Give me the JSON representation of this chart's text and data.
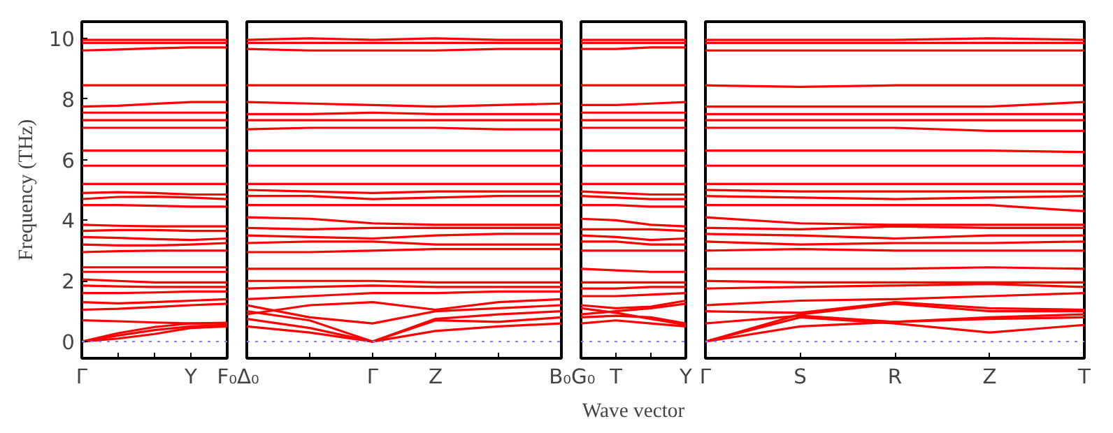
{
  "chart_data": [
    {
      "type": "line",
      "ylabel": "Frequency (THz)",
      "ylim": [
        -0.55,
        10.55
      ],
      "yticks": [
        0,
        2,
        4,
        6,
        8,
        10
      ],
      "categories": [
        "Γ",
        null,
        null,
        "Y",
        "F₀"
      ],
      "grid": false,
      "line_style": "solid",
      "ref_lines": [
        {
          "axis": "y",
          "value": 0,
          "color": "#8080ff",
          "line_style": "dotted"
        }
      ],
      "series": [
        {
          "color": "#ff0000",
          "values": [
            0,
            0.2,
            0.38,
            0.5,
            0.55
          ]
        },
        {
          "color": "#ff0000",
          "values": [
            0,
            0.28,
            0.48,
            0.6,
            0.62
          ]
        },
        {
          "color": "#ff0000",
          "values": [
            0,
            0.1,
            0.25,
            0.45,
            0.5
          ]
        },
        {
          "color": "#ff0000",
          "values": [
            0.7,
            0.67,
            0.63,
            0.6,
            0.6
          ]
        },
        {
          "color": "#ff0000",
          "values": [
            1.05,
            1.08,
            1.14,
            1.2,
            1.25
          ]
        },
        {
          "color": "#ff0000",
          "values": [
            1.3,
            1.26,
            1.3,
            1.35,
            1.4
          ]
        },
        {
          "color": "#ff0000",
          "values": [
            1.6,
            1.6,
            1.62,
            1.65,
            1.65
          ]
        },
        {
          "color": "#ff0000",
          "values": [
            1.85,
            1.82,
            1.8,
            1.8,
            1.8
          ]
        },
        {
          "color": "#ff0000",
          "values": [
            2.05,
            2.0,
            1.95,
            1.95,
            1.95
          ]
        },
        {
          "color": "#ff0000",
          "values": [
            2.3,
            2.3,
            2.3,
            2.3,
            2.3
          ]
        },
        {
          "color": "#ff0000",
          "values": [
            2.45,
            2.45,
            2.45,
            2.45,
            2.45
          ]
        },
        {
          "color": "#ff0000",
          "values": [
            2.95,
            2.98,
            3.0,
            3.0,
            3.0
          ]
        },
        {
          "color": "#ff0000",
          "values": [
            3.2,
            3.17,
            3.17,
            3.2,
            3.25
          ]
        },
        {
          "color": "#ff0000",
          "values": [
            3.45,
            3.42,
            3.38,
            3.35,
            3.4
          ]
        },
        {
          "color": "#ff0000",
          "values": [
            3.65,
            3.68,
            3.68,
            3.65,
            3.65
          ]
        },
        {
          "color": "#ff0000",
          "values": [
            3.85,
            3.82,
            3.8,
            3.8,
            3.8
          ]
        },
        {
          "color": "#ff0000",
          "values": [
            4.5,
            4.5,
            4.48,
            4.45,
            4.45
          ]
        },
        {
          "color": "#ff0000",
          "values": [
            4.7,
            4.77,
            4.78,
            4.75,
            4.7
          ]
        },
        {
          "color": "#ff0000",
          "values": [
            4.9,
            4.93,
            4.9,
            4.85,
            4.85
          ]
        },
        {
          "color": "#ff0000",
          "values": [
            5.2,
            5.2,
            5.2,
            5.2,
            5.2
          ]
        },
        {
          "color": "#ff0000",
          "values": [
            5.8,
            5.8,
            5.8,
            5.8,
            5.8
          ]
        },
        {
          "color": "#ff0000",
          "values": [
            6.3,
            6.3,
            6.3,
            6.3,
            6.3
          ]
        },
        {
          "color": "#ff0000",
          "values": [
            7.05,
            7.05,
            7.05,
            7.05,
            7.05
          ]
        },
        {
          "color": "#ff0000",
          "values": [
            7.3,
            7.3,
            7.3,
            7.3,
            7.3
          ]
        },
        {
          "color": "#ff0000",
          "values": [
            7.55,
            7.55,
            7.55,
            7.55,
            7.55
          ]
        },
        {
          "color": "#ff0000",
          "values": [
            7.75,
            7.78,
            7.84,
            7.9,
            7.9
          ]
        },
        {
          "color": "#ff0000",
          "values": [
            8.45,
            8.45,
            8.45,
            8.45,
            8.45
          ]
        },
        {
          "color": "#ff0000",
          "values": [
            9.6,
            9.63,
            9.67,
            9.7,
            9.7
          ]
        },
        {
          "color": "#ff0000",
          "values": [
            9.85,
            9.85,
            9.85,
            9.85,
            9.85
          ]
        },
        {
          "color": "#ff0000",
          "values": [
            9.95,
            9.95,
            9.95,
            9.95,
            9.95
          ]
        }
      ]
    },
    {
      "type": "line",
      "tick_labels": "x",
      "ylim": [
        -0.55,
        10.55
      ],
      "categories": [
        "Δ₀",
        null,
        "Γ",
        "Z",
        null,
        "B₀"
      ],
      "grid": false,
      "line_style": "solid",
      "ref_lines": [
        {
          "axis": "y",
          "value": 0,
          "color": "#8080ff",
          "line_style": "dotted"
        }
      ],
      "series": [
        {
          "color": "#ff0000",
          "values": [
            0.5,
            0.3,
            0,
            0.35,
            0.5,
            0.6
          ]
        },
        {
          "color": "#ff0000",
          "values": [
            0.75,
            0.45,
            0,
            0.7,
            0.65,
            0.8
          ]
        },
        {
          "color": "#ff0000",
          "values": [
            1.0,
            0.7,
            0,
            0.75,
            0.9,
            1.0
          ]
        },
        {
          "color": "#ff0000",
          "values": [
            1.2,
            0.8,
            0.6,
            1.0,
            1.1,
            1.2
          ]
        },
        {
          "color": "#ff0000",
          "values": [
            0.9,
            1.2,
            1.3,
            1.05,
            1.3,
            1.4
          ]
        },
        {
          "color": "#ff0000",
          "values": [
            1.4,
            1.5,
            1.6,
            1.6,
            1.65,
            1.65
          ]
        },
        {
          "color": "#ff0000",
          "values": [
            1.75,
            1.8,
            1.85,
            1.8,
            1.8,
            1.8
          ]
        },
        {
          "color": "#ff0000",
          "values": [
            2.0,
            2.0,
            2.0,
            1.95,
            1.95,
            1.95
          ]
        },
        {
          "color": "#ff0000",
          "values": [
            2.4,
            2.4,
            2.4,
            2.4,
            2.4,
            2.4
          ]
        },
        {
          "color": "#ff0000",
          "values": [
            2.95,
            2.95,
            3.0,
            3.05,
            3.05,
            3.05
          ]
        },
        {
          "color": "#ff0000",
          "values": [
            3.25,
            3.3,
            3.3,
            3.2,
            3.2,
            3.2
          ]
        },
        {
          "color": "#ff0000",
          "values": [
            3.5,
            3.45,
            3.4,
            3.5,
            3.55,
            3.55
          ]
        },
        {
          "color": "#ff0000",
          "values": [
            3.75,
            3.7,
            3.75,
            3.75,
            3.75,
            3.75
          ]
        },
        {
          "color": "#ff0000",
          "values": [
            4.1,
            4.05,
            3.9,
            3.85,
            3.85,
            3.85
          ]
        },
        {
          "color": "#ff0000",
          "values": [
            4.5,
            4.5,
            4.5,
            4.5,
            4.5,
            4.5
          ]
        },
        {
          "color": "#ff0000",
          "values": [
            4.8,
            4.8,
            4.7,
            4.75,
            4.8,
            4.8
          ]
        },
        {
          "color": "#ff0000",
          "values": [
            5.0,
            4.95,
            4.9,
            4.95,
            4.95,
            4.95
          ]
        },
        {
          "color": "#ff0000",
          "values": [
            5.2,
            5.2,
            5.2,
            5.2,
            5.2,
            5.2
          ]
        },
        {
          "color": "#ff0000",
          "values": [
            5.8,
            5.8,
            5.8,
            5.8,
            5.8,
            5.8
          ]
        },
        {
          "color": "#ff0000",
          "values": [
            6.3,
            6.3,
            6.3,
            6.3,
            6.3,
            6.3
          ]
        },
        {
          "color": "#ff0000",
          "values": [
            7.0,
            7.05,
            7.05,
            7.05,
            7.0,
            7.0
          ]
        },
        {
          "color": "#ff0000",
          "values": [
            7.3,
            7.3,
            7.3,
            7.3,
            7.3,
            7.3
          ]
        },
        {
          "color": "#ff0000",
          "values": [
            7.5,
            7.5,
            7.55,
            7.5,
            7.5,
            7.5
          ]
        },
        {
          "color": "#ff0000",
          "values": [
            7.9,
            7.85,
            7.8,
            7.75,
            7.8,
            7.85
          ]
        },
        {
          "color": "#ff0000",
          "values": [
            8.45,
            8.45,
            8.45,
            8.45,
            8.45,
            8.45
          ]
        },
        {
          "color": "#ff0000",
          "values": [
            9.65,
            9.6,
            9.6,
            9.6,
            9.65,
            9.65
          ]
        },
        {
          "color": "#ff0000",
          "values": [
            9.85,
            9.85,
            9.85,
            9.85,
            9.85,
            9.85
          ]
        },
        {
          "color": "#ff0000",
          "values": [
            9.95,
            10.0,
            9.95,
            10.0,
            9.95,
            9.95
          ]
        }
      ]
    },
    {
      "type": "line",
      "tick_labels": "x",
      "xlabel": "Wave vector",
      "ylim": [
        -0.55,
        10.55
      ],
      "categories": [
        "G₀",
        "T",
        null,
        "Y"
      ],
      "grid": false,
      "line_style": "solid",
      "ref_lines": [
        {
          "axis": "y",
          "value": 0,
          "color": "#8080ff",
          "line_style": "dotted"
        }
      ],
      "series": [
        {
          "color": "#ff0000",
          "values": [
            0.6,
            0.7,
            0.6,
            0.5
          ]
        },
        {
          "color": "#ff0000",
          "values": [
            0.8,
            0.85,
            0.8,
            0.6
          ]
        },
        {
          "color": "#ff0000",
          "values": [
            1.1,
            0.95,
            0.75,
            0.55
          ]
        },
        {
          "color": "#ff0000",
          "values": [
            0.9,
            1.0,
            1.1,
            1.25
          ]
        },
        {
          "color": "#ff0000",
          "values": [
            1.2,
            1.1,
            1.15,
            1.35
          ]
        },
        {
          "color": "#ff0000",
          "values": [
            1.5,
            1.5,
            1.55,
            1.6
          ]
        },
        {
          "color": "#ff0000",
          "values": [
            1.75,
            1.75,
            1.8,
            1.8
          ]
        },
        {
          "color": "#ff0000",
          "values": [
            1.95,
            1.95,
            1.95,
            1.95
          ]
        },
        {
          "color": "#ff0000",
          "values": [
            2.4,
            2.35,
            2.3,
            2.3
          ]
        },
        {
          "color": "#ff0000",
          "values": [
            3.0,
            3.0,
            3.0,
            3.0
          ]
        },
        {
          "color": "#ff0000",
          "values": [
            3.3,
            3.3,
            3.2,
            3.2
          ]
        },
        {
          "color": "#ff0000",
          "values": [
            3.5,
            3.45,
            3.35,
            3.4
          ]
        },
        {
          "color": "#ff0000",
          "values": [
            3.7,
            3.7,
            3.7,
            3.65
          ]
        },
        {
          "color": "#ff0000",
          "values": [
            4.05,
            4.0,
            3.85,
            3.8
          ]
        },
        {
          "color": "#ff0000",
          "values": [
            4.5,
            4.5,
            4.45,
            4.45
          ]
        },
        {
          "color": "#ff0000",
          "values": [
            4.8,
            4.75,
            4.7,
            4.7
          ]
        },
        {
          "color": "#ff0000",
          "values": [
            4.95,
            4.9,
            4.85,
            4.85
          ]
        },
        {
          "color": "#ff0000",
          "values": [
            5.2,
            5.2,
            5.2,
            5.2
          ]
        },
        {
          "color": "#ff0000",
          "values": [
            5.8,
            5.8,
            5.8,
            5.8
          ]
        },
        {
          "color": "#ff0000",
          "values": [
            6.3,
            6.3,
            6.3,
            6.3
          ]
        },
        {
          "color": "#ff0000",
          "values": [
            7.05,
            7.05,
            7.05,
            7.05
          ]
        },
        {
          "color": "#ff0000",
          "values": [
            7.3,
            7.3,
            7.3,
            7.3
          ]
        },
        {
          "color": "#ff0000",
          "values": [
            7.55,
            7.55,
            7.55,
            7.55
          ]
        },
        {
          "color": "#ff0000",
          "values": [
            7.8,
            7.8,
            7.85,
            7.9
          ]
        },
        {
          "color": "#ff0000",
          "values": [
            8.45,
            8.45,
            8.45,
            8.45
          ]
        },
        {
          "color": "#ff0000",
          "values": [
            9.65,
            9.65,
            9.7,
            9.7
          ]
        },
        {
          "color": "#ff0000",
          "values": [
            9.85,
            9.85,
            9.85,
            9.85
          ]
        },
        {
          "color": "#ff0000",
          "values": [
            9.95,
            9.95,
            9.95,
            9.95
          ]
        }
      ]
    },
    {
      "type": "line",
      "tick_labels": "x",
      "ylim": [
        -0.55,
        10.55
      ],
      "categories": [
        "Γ",
        "S",
        "R",
        "Z",
        "T"
      ],
      "grid": false,
      "line_style": "solid",
      "ref_lines": [
        {
          "axis": "y",
          "value": 0,
          "color": "#8080ff",
          "line_style": "dotted"
        }
      ],
      "series": [
        {
          "color": "#ff0000",
          "values": [
            0,
            0.8,
            0.6,
            0.3,
            0.55
          ]
        },
        {
          "color": "#ff0000",
          "values": [
            0,
            0.9,
            1.25,
            1.0,
            1.0
          ]
        },
        {
          "color": "#ff0000",
          "values": [
            0,
            0.5,
            0.65,
            0.75,
            0.8
          ]
        },
        {
          "color": "#ff0000",
          "values": [
            0.6,
            0.85,
            0.65,
            0.8,
            0.9
          ]
        },
        {
          "color": "#ff0000",
          "values": [
            1.0,
            0.95,
            1.3,
            1.1,
            1.05
          ]
        },
        {
          "color": "#ff0000",
          "values": [
            1.2,
            1.35,
            1.4,
            1.5,
            1.6
          ]
        },
        {
          "color": "#ff0000",
          "values": [
            1.75,
            1.8,
            1.85,
            1.9,
            1.8
          ]
        },
        {
          "color": "#ff0000",
          "values": [
            2.0,
            1.95,
            1.95,
            1.95,
            1.95
          ]
        },
        {
          "color": "#ff0000",
          "values": [
            2.4,
            2.4,
            2.4,
            2.45,
            2.4
          ]
        },
        {
          "color": "#ff0000",
          "values": [
            3.0,
            3.05,
            3.0,
            3.0,
            3.0
          ]
        },
        {
          "color": "#ff0000",
          "values": [
            3.3,
            3.2,
            3.25,
            3.25,
            3.3
          ]
        },
        {
          "color": "#ff0000",
          "values": [
            3.55,
            3.5,
            3.4,
            3.5,
            3.5
          ]
        },
        {
          "color": "#ff0000",
          "values": [
            3.75,
            3.7,
            3.8,
            3.75,
            3.75
          ]
        },
        {
          "color": "#ff0000",
          "values": [
            4.1,
            3.9,
            3.85,
            3.85,
            3.85
          ]
        },
        {
          "color": "#ff0000",
          "values": [
            4.5,
            4.5,
            4.5,
            4.5,
            4.3
          ]
        },
        {
          "color": "#ff0000",
          "values": [
            4.8,
            4.75,
            4.7,
            4.75,
            4.8
          ]
        },
        {
          "color": "#ff0000",
          "values": [
            5.0,
            4.95,
            4.95,
            4.95,
            4.95
          ]
        },
        {
          "color": "#ff0000",
          "values": [
            5.2,
            5.2,
            5.2,
            5.2,
            5.2
          ]
        },
        {
          "color": "#ff0000",
          "values": [
            5.8,
            5.8,
            5.8,
            5.8,
            5.8
          ]
        },
        {
          "color": "#ff0000",
          "values": [
            6.3,
            6.3,
            6.3,
            6.3,
            6.25
          ]
        },
        {
          "color": "#ff0000",
          "values": [
            7.05,
            7.05,
            7.05,
            6.95,
            6.95
          ]
        },
        {
          "color": "#ff0000",
          "values": [
            7.3,
            7.3,
            7.3,
            7.3,
            7.3
          ]
        },
        {
          "color": "#ff0000",
          "values": [
            7.5,
            7.5,
            7.5,
            7.5,
            7.5
          ]
        },
        {
          "color": "#ff0000",
          "values": [
            7.75,
            7.75,
            7.75,
            7.75,
            7.9
          ]
        },
        {
          "color": "#ff0000",
          "values": [
            8.45,
            8.4,
            8.45,
            8.45,
            8.45
          ]
        },
        {
          "color": "#ff0000",
          "values": [
            9.6,
            9.6,
            9.6,
            9.6,
            9.6
          ]
        },
        {
          "color": "#ff0000",
          "values": [
            9.85,
            9.85,
            9.85,
            9.85,
            9.85
          ]
        },
        {
          "color": "#ff0000",
          "values": [
            9.95,
            9.95,
            9.95,
            10.0,
            9.95
          ]
        }
      ]
    }
  ]
}
